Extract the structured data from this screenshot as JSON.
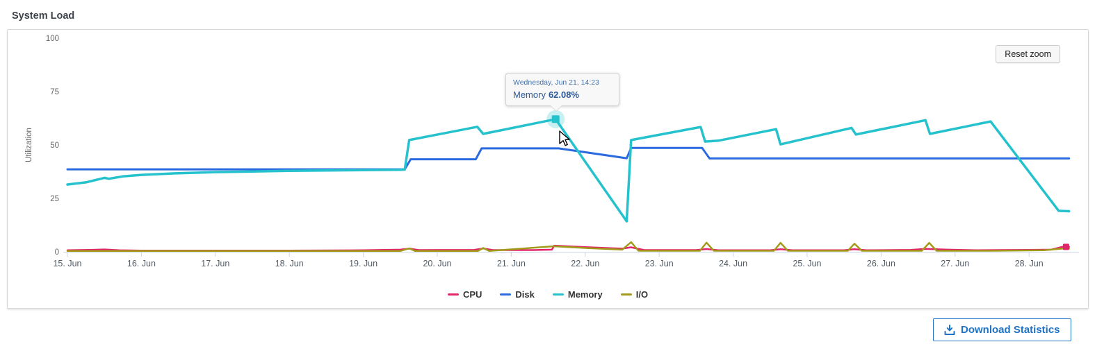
{
  "page_title": "System Load",
  "panel": {
    "reset_zoom_label": "Reset zoom"
  },
  "tooltip": {
    "header": "Wednesday, Jun 21, 14:23",
    "series": "Memory",
    "value": "62.08%"
  },
  "download_button": {
    "label": "Download Statistics"
  },
  "colors": {
    "cpu": "#e2246a",
    "disk": "#2a6adf",
    "memory": "#25c2cd",
    "io": "#a29b19",
    "axis": "#ccd6eb",
    "x_label": "#525b66",
    "y_label": "#666666",
    "legend_text": "#333333",
    "tooltip_header": "#4673a9",
    "tooltip_body": "#2d5a99",
    "download_blue": "#1e72c5"
  },
  "chart_data": {
    "type": "line",
    "title": "System Load",
    "xlabel": "",
    "ylabel": "Utilization",
    "ylim": [
      0,
      100
    ],
    "grid": false,
    "legend_position": "bottom-center",
    "x_unit": "days offset from Jun 15 (fractional = time of day)",
    "x_ticks": [
      {
        "day": 0,
        "label": "15. Jun"
      },
      {
        "day": 1,
        "label": "16. Jun"
      },
      {
        "day": 2,
        "label": "17. Jun"
      },
      {
        "day": 3,
        "label": "18. Jun"
      },
      {
        "day": 4,
        "label": "19. Jun"
      },
      {
        "day": 5,
        "label": "20. Jun"
      },
      {
        "day": 6,
        "label": "21. Jun"
      },
      {
        "day": 7,
        "label": "22. Jun"
      },
      {
        "day": 8,
        "label": "23. Jun"
      },
      {
        "day": 9,
        "label": "24. Jun"
      },
      {
        "day": 10,
        "label": "25. Jun"
      },
      {
        "day": 11,
        "label": "26. Jun"
      },
      {
        "day": 12,
        "label": "27. Jun"
      },
      {
        "day": 13,
        "label": "28. Jun"
      }
    ],
    "y_ticks": [
      0,
      25,
      50,
      75,
      100
    ],
    "series": [
      {
        "name": "CPU",
        "color": "#e2246a",
        "width": 2.5,
        "points": [
          [
            0,
            0.7
          ],
          [
            0.3,
            0.9
          ],
          [
            0.5,
            1.1
          ],
          [
            0.7,
            0.7
          ],
          [
            1,
            0.6
          ],
          [
            2,
            0.6
          ],
          [
            3,
            0.6
          ],
          [
            4,
            0.7
          ],
          [
            4.5,
            1.0
          ],
          [
            4.62,
            1.5
          ],
          [
            4.75,
            0.8
          ],
          [
            5.5,
            0.9
          ],
          [
            5.62,
            1.6
          ],
          [
            5.75,
            0.8
          ],
          [
            6.3,
            0.8
          ],
          [
            6.55,
            1.0
          ],
          [
            6.58,
            2.9
          ],
          [
            7.0,
            2.2
          ],
          [
            7.5,
            1.5
          ],
          [
            7.62,
            2.1
          ],
          [
            7.8,
            0.8
          ],
          [
            8.5,
            0.8
          ],
          [
            8.64,
            1.3
          ],
          [
            8.8,
            0.7
          ],
          [
            9.5,
            0.7
          ],
          [
            9.64,
            1.2
          ],
          [
            9.8,
            0.7
          ],
          [
            10.5,
            0.7
          ],
          [
            10.64,
            1.2
          ],
          [
            10.8,
            0.7
          ],
          [
            11.4,
            0.9
          ],
          [
            11.6,
            1.4
          ],
          [
            11.9,
            1.0
          ],
          [
            12.3,
            0.7
          ],
          [
            12.6,
            0.8
          ],
          [
            13.0,
            0.9
          ],
          [
            13.3,
            1.0
          ],
          [
            13.45,
            2.3
          ],
          [
            13.54,
            2.3
          ]
        ]
      },
      {
        "name": "Disk",
        "color": "#2a6adf",
        "width": 3,
        "points": [
          [
            0,
            38.6
          ],
          [
            4.56,
            38.6
          ],
          [
            4.64,
            43.3
          ],
          [
            5.52,
            43.3
          ],
          [
            5.6,
            48.4
          ],
          [
            6.64,
            48.4
          ],
          [
            7.56,
            43.8
          ],
          [
            7.62,
            48.6
          ],
          [
            8.58,
            48.6
          ],
          [
            8.68,
            43.7
          ],
          [
            13.54,
            43.7
          ]
        ]
      },
      {
        "name": "Memory",
        "color": "#25c2cd",
        "width": 3.5,
        "points": [
          [
            0,
            31.5
          ],
          [
            0.25,
            32.5
          ],
          [
            0.5,
            34.6
          ],
          [
            0.56,
            34.2
          ],
          [
            0.75,
            35.3
          ],
          [
            1.0,
            36.0
          ],
          [
            1.5,
            36.8
          ],
          [
            2.0,
            37.3
          ],
          [
            2.5,
            37.6
          ],
          [
            3.0,
            37.9
          ],
          [
            3.5,
            38.1
          ],
          [
            4.0,
            38.2
          ],
          [
            4.5,
            38.4
          ],
          [
            4.56,
            38.5
          ],
          [
            4.62,
            52.3
          ],
          [
            5.54,
            58.5
          ],
          [
            5.62,
            55.2
          ],
          [
            6.6,
            62.08
          ],
          [
            7.56,
            14.3
          ],
          [
            7.62,
            52.3
          ],
          [
            8.56,
            58.4
          ],
          [
            8.62,
            51.6
          ],
          [
            8.8,
            52.0
          ],
          [
            9.58,
            57.4
          ],
          [
            9.64,
            50.3
          ],
          [
            10.6,
            58.0
          ],
          [
            10.66,
            54.9
          ],
          [
            11.6,
            61.6
          ],
          [
            11.66,
            55.2
          ],
          [
            12.48,
            61.0
          ],
          [
            13.4,
            19.2
          ],
          [
            13.54,
            19.0
          ]
        ]
      },
      {
        "name": "I/O",
        "color": "#a29b19",
        "width": 2.5,
        "points": [
          [
            0,
            0.4
          ],
          [
            4.5,
            0.4
          ],
          [
            4.62,
            1.6
          ],
          [
            4.7,
            0.4
          ],
          [
            5.55,
            0.4
          ],
          [
            5.62,
            1.8
          ],
          [
            5.7,
            0.4
          ],
          [
            6.58,
            2.6
          ],
          [
            7.0,
            1.8
          ],
          [
            7.5,
            1.0
          ],
          [
            7.62,
            4.5
          ],
          [
            7.72,
            0.5
          ],
          [
            8.55,
            0.5
          ],
          [
            8.64,
            4.3
          ],
          [
            8.74,
            0.5
          ],
          [
            9.55,
            0.5
          ],
          [
            9.64,
            4.2
          ],
          [
            9.74,
            0.5
          ],
          [
            10.55,
            0.5
          ],
          [
            10.64,
            3.8
          ],
          [
            10.74,
            0.5
          ],
          [
            11.55,
            0.5
          ],
          [
            11.65,
            4.2
          ],
          [
            11.75,
            0.5
          ],
          [
            12.5,
            0.5
          ],
          [
            13.2,
            0.7
          ],
          [
            13.45,
            1.5
          ],
          [
            13.54,
            1.5
          ]
        ]
      }
    ],
    "draw_order": [
      "CPU",
      "I/O",
      "Disk",
      "Memory"
    ],
    "highlight_point": {
      "series": "Memory",
      "day": 6.6,
      "value": 62.08
    },
    "end_marker": {
      "series": "CPU",
      "day": 13.5,
      "value": 2.3
    }
  }
}
